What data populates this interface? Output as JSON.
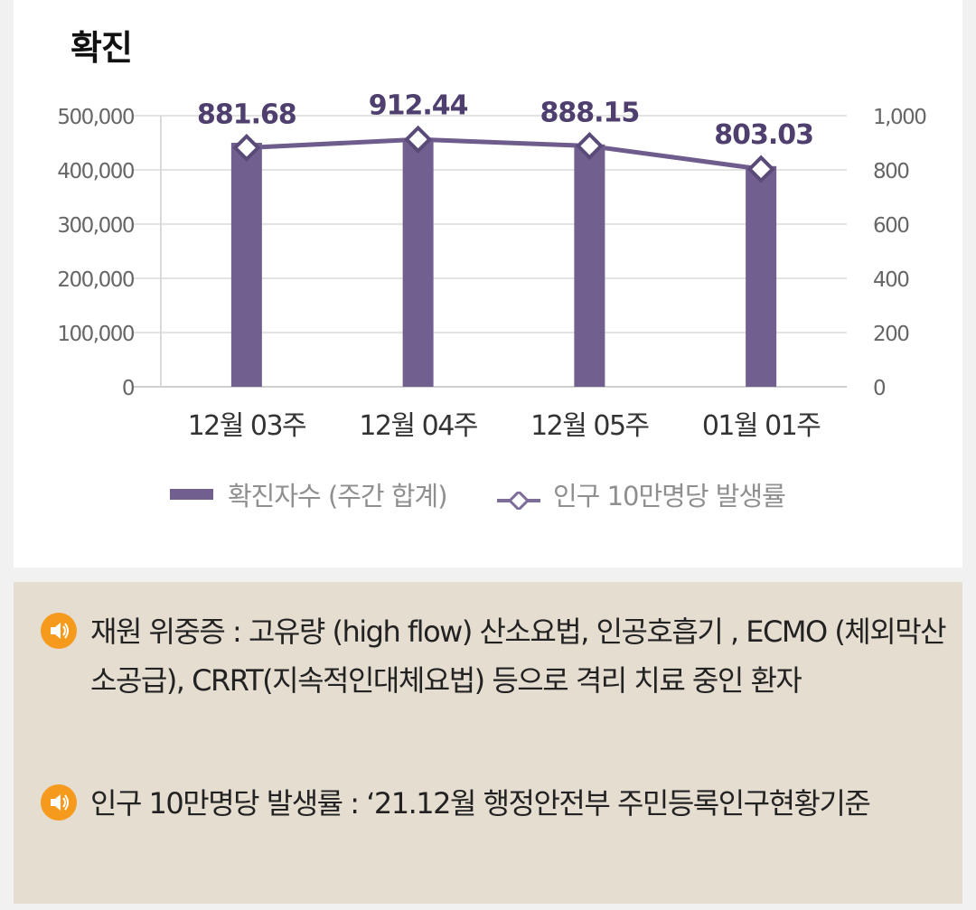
{
  "title": "확진",
  "legend": {
    "bar_label": "확진자수 (주간 합계)",
    "line_label": "인구 10만명당 발생률"
  },
  "colors": {
    "bar": "#71608f",
    "line": "#6e5d8c",
    "accent_icon": "#f59a1c",
    "notes_bg": "#e4ddd0"
  },
  "chart_data": {
    "type": "bar",
    "categories": [
      "12월 03주",
      "12월 04주",
      "12월 05주",
      "01월 01주"
    ],
    "series": [
      {
        "name": "확진자수 (주간 합계)",
        "type": "bar",
        "axis": "left",
        "values": [
          450000,
          455000,
          447000,
          407000
        ]
      },
      {
        "name": "인구 10만명당 발생률",
        "type": "line",
        "axis": "right",
        "values": [
          881.68,
          912.44,
          888.15,
          803.03
        ],
        "data_labels": [
          "881.68",
          "912.44",
          "888.15",
          "803.03"
        ]
      }
    ],
    "y_left": {
      "ylim": [
        0,
        500000
      ],
      "ticks": [
        "0",
        "100,000",
        "200,000",
        "300,000",
        "400,000",
        "500,000"
      ]
    },
    "y_right": {
      "ylim": [
        0,
        1000
      ],
      "ticks": [
        "0",
        "200",
        "400",
        "600",
        "800",
        "1,000"
      ]
    },
    "grid": true,
    "legend_position": "bottom"
  },
  "notes": [
    {
      "icon": "speaker-icon",
      "text": "재원 위중증 : 고유량 (high flow) 산소요법, 인공호흡기 , ECMO (체외막산소공급), CRRT(지속적인대체요법) 등으로 격리 치료 중인 환자"
    },
    {
      "icon": "speaker-icon",
      "text": "인구 10만명당 발생률 : ‘21.12월 행정안전부 주민등록인구현황기준"
    }
  ]
}
